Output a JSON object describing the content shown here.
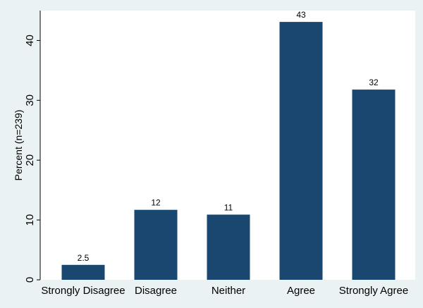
{
  "chart_data": {
    "type": "bar",
    "categories": [
      "Strongly Disagree",
      "Disagree",
      "Neither",
      "Agree",
      "Strongly Agree"
    ],
    "values": [
      2.5,
      11.7,
      10.9,
      43.1,
      31.8
    ],
    "data_labels": [
      "2.5",
      "12",
      "11",
      "43",
      "32"
    ],
    "ylabel": "Percent (n=239)",
    "xlabel": "",
    "title": "",
    "yticks": [
      0,
      10,
      20,
      30,
      40
    ],
    "ylim": [
      0,
      45
    ],
    "grid": false,
    "legend": "none",
    "colors": {
      "bar": "#1a476f",
      "plot_background": "#ffffff",
      "outer_background": "#eaf2f3",
      "axis": "#000000"
    }
  }
}
